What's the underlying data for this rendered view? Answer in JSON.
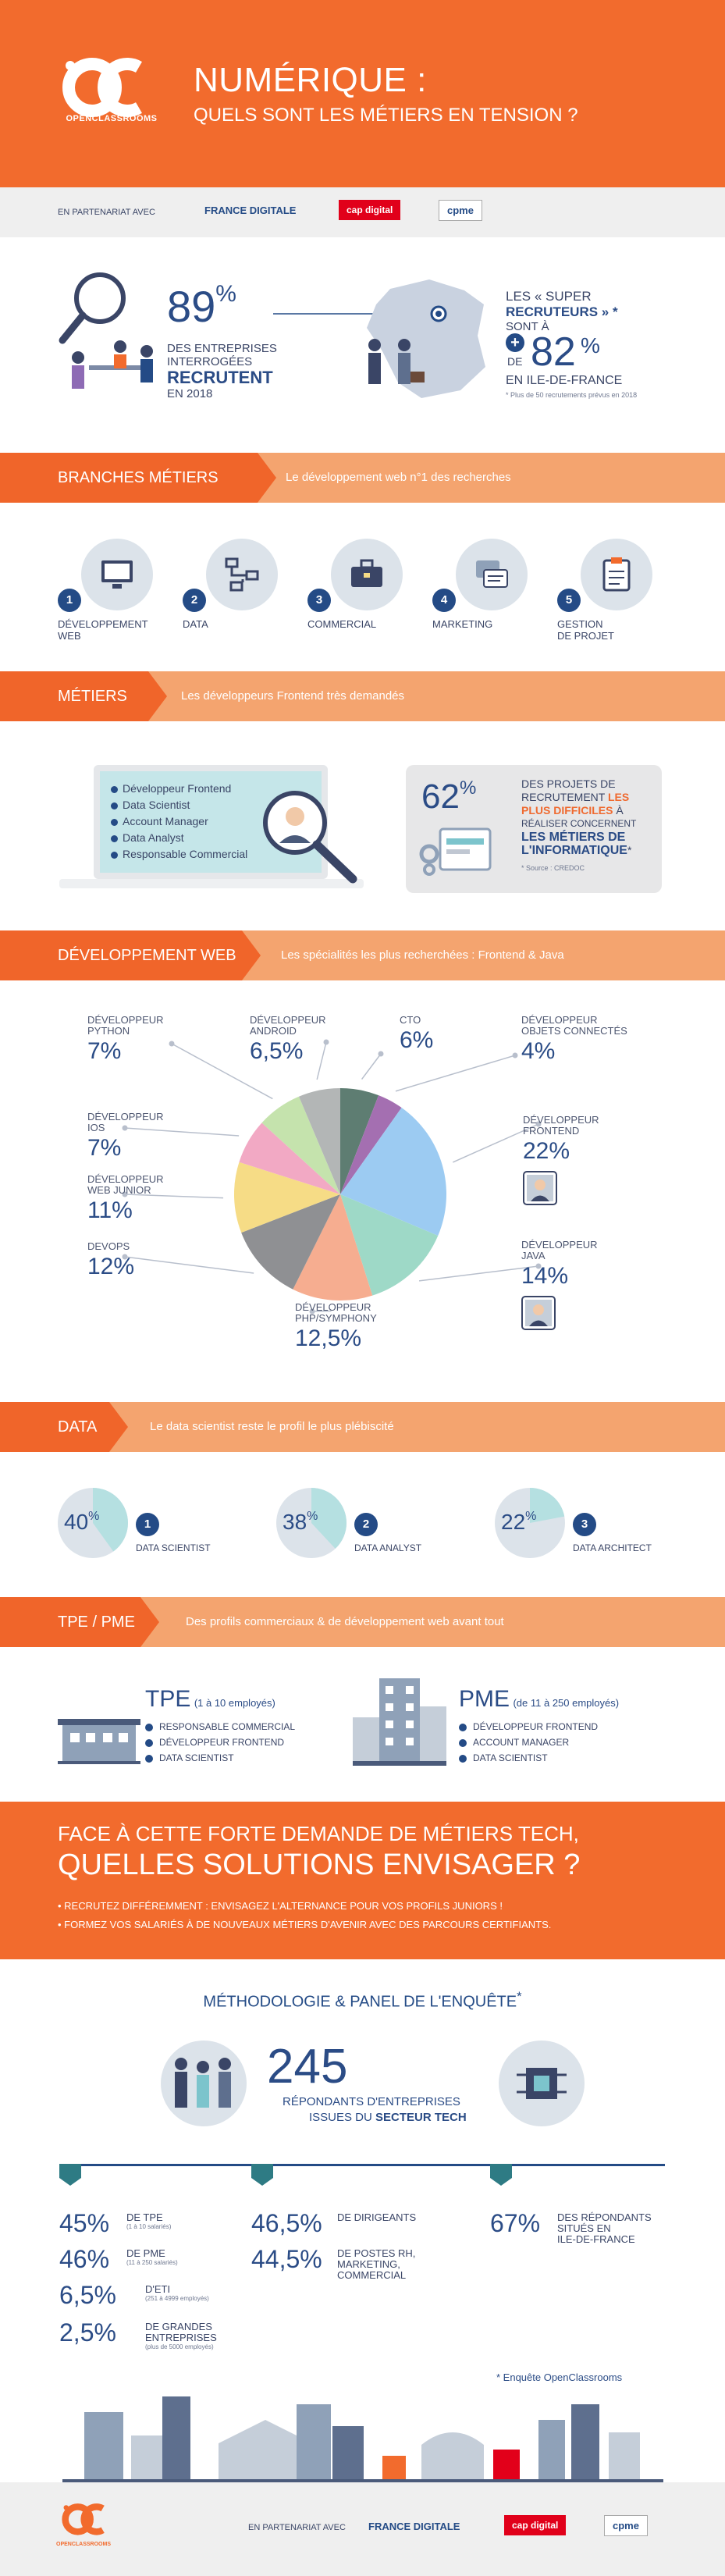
{
  "header": {
    "logo_text": "OPENCLASSROOMS",
    "title": "NUMÉRIQUE :",
    "subtitle": "QUELS SONT LES MÉTIERS EN TENSION ?"
  },
  "partners": {
    "label": "EN PARTENARIAT AVEC",
    "logos": [
      "FRANCE DIGITALE",
      "cap digital",
      "cpme"
    ]
  },
  "intro": {
    "pct": "89",
    "pct_unit": "%",
    "line1": "DES ENTREPRISES",
    "line2": "INTERROGÉES",
    "line3": "RECRUTENT",
    "line4": "EN 2018",
    "right_line1": "LES « SUPER",
    "right_line2": "RECRUTEURS » *",
    "right_line3": "SONT À",
    "plus": "+",
    "de": "DE",
    "right_pct": "82",
    "right_pct_unit": "%",
    "right_line4": "EN ILE-DE-FRANCE",
    "footnote": "* Plus de 50 recrutements prévus en 2018"
  },
  "branches": {
    "tag": "BRANCHES MÉTIERS",
    "desc": "Le développement web n°1 des recherches",
    "items": [
      {
        "num": "1",
        "label1": "DÉVELOPPEMENT",
        "label2": "WEB"
      },
      {
        "num": "2",
        "label1": "DATA",
        "label2": ""
      },
      {
        "num": "3",
        "label1": "COMMERCIAL",
        "label2": ""
      },
      {
        "num": "4",
        "label1": "MARKETING",
        "label2": ""
      },
      {
        "num": "5",
        "label1": "GESTION",
        "label2": "DE PROJET"
      }
    ]
  },
  "metiers": {
    "tag": "MÉTIERS",
    "desc": "Les développeurs Frontend très demandés",
    "list": [
      "Développeur Frontend",
      "Data Scientist",
      "Account Manager",
      "Data Analyst",
      "Responsable Commercial"
    ],
    "pct": "62",
    "pct_unit": "%",
    "r1": "DES PROJETS DE",
    "r2": "RECRUTEMENT",
    "r2b": "LES",
    "r3": "PLUS DIFFICILES",
    "r3b": "À",
    "r4": "RÉALISER CONCERNENT",
    "r5": "LES MÉTIERS DE",
    "r6": "L'INFORMATIQUE",
    "r6b": "*",
    "source": "* Source : CREDOC"
  },
  "devweb": {
    "tag": "DÉVELOPPEMENT WEB",
    "desc": "Les spécialités les plus recherchées : Frontend & Java"
  },
  "chart_data": {
    "type": "pie",
    "series": [
      {
        "label1": "CTO",
        "label2": "",
        "value": "6%",
        "v": 6,
        "color": "#5e7d72"
      },
      {
        "label1": "DÉVELOPPEUR",
        "label2": "OBJETS CONNECTÉS",
        "value": "4%",
        "v": 4,
        "color": "#a46fb1"
      },
      {
        "label1": "DÉVELOPPEUR",
        "label2": "FRONTEND",
        "value": "22%",
        "v": 22,
        "color": "#9ccbf2"
      },
      {
        "label1": "DÉVELOPPEUR",
        "label2": "JAVA",
        "value": "14%",
        "v": 14,
        "color": "#9ed9c7"
      },
      {
        "label1": "DÉVELOPPEUR",
        "label2": "PHP/SYMPHONY",
        "value": "12,5%",
        "v": 12.5,
        "color": "#f6ad90"
      },
      {
        "label1": "DEVOPS",
        "label2": "",
        "value": "12%",
        "v": 12,
        "color": "#8f9093"
      },
      {
        "label1": "DÉVELOPPEUR",
        "label2": "WEB JUNIOR",
        "value": "11%",
        "v": 11,
        "color": "#f6dc86"
      },
      {
        "label1": "DÉVELOPPEUR",
        "label2": "IOS",
        "value": "7%",
        "v": 7,
        "color": "#f2a9c4"
      },
      {
        "label1": "DÉVELOPPEUR",
        "label2": "PYTHON",
        "value": "7%",
        "v": 7,
        "color": "#c5e3ad"
      },
      {
        "label1": "DÉVELOPPEUR",
        "label2": "ANDROID",
        "value": "6,5%",
        "v": 6.5,
        "color": "#b3b6b6"
      }
    ]
  },
  "data_section": {
    "tag": "DATA",
    "desc": "Le data scientist reste le profil le plus plébiscité",
    "items": [
      {
        "pct": "40",
        "unit": "%",
        "frac": 0.4,
        "num": "1",
        "label": "DATA SCIENTIST"
      },
      {
        "pct": "38",
        "unit": "%",
        "frac": 0.38,
        "num": "2",
        "label": "DATA ANALYST"
      },
      {
        "pct": "22",
        "unit": "%",
        "frac": 0.22,
        "num": "3",
        "label": "DATA ARCHITECT"
      }
    ]
  },
  "tpe": {
    "tag": "TPE / PME",
    "desc": "Des profils commerciaux & de développement web avant tout",
    "tpe_title": "TPE",
    "tpe_sub": "(1 à 10 employés)",
    "tpe_list": [
      "RESPONSABLE COMMERCIAL",
      "DÉVELOPPEUR FRONTEND",
      "DATA SCIENTIST"
    ],
    "pme_title": "PME",
    "pme_sub": "(de 11 à 250 employés)",
    "pme_list": [
      "DÉVELOPPEUR FRONTEND",
      "ACCOUNT MANAGER",
      "DATA SCIENTIST"
    ]
  },
  "solutions": {
    "title1": "FACE À CETTE  FORTE DEMANDE DE MÉTIERS TECH,",
    "title2": "QUELLES SOLUTIONS ENVISAGER ?",
    "bullet1": "• RECRUTEZ DIFFÉREMMENT : ENVISAGEZ L'ALTERNANCE POUR VOS PROFILS JUNIORS !",
    "bullet2": "• FORMEZ VOS SALARIÉS À DE NOUVEAUX MÉTIERS D'AVENIR AVEC DES PARCOURS CERTIFIANTS."
  },
  "methodo": {
    "title": "MÉTHODOLOGIE & PANEL DE L'ENQUÊTE",
    "star": "*",
    "count": "245",
    "count_l1": "RÉPONDANTS D'ENTREPRISES",
    "count_l2a": "ISSUES DU",
    "count_l2b": "SECTEUR TECH",
    "col1": [
      {
        "pct": "45%",
        "label": "DE TPE",
        "note": "(1 à 10 salariés)"
      },
      {
        "pct": "46%",
        "label": "DE PME",
        "note": "(11 à 250 salariés)"
      },
      {
        "pct": "6,5%",
        "label": "D'ETI",
        "note": "(251 à 4999 employés)"
      },
      {
        "pct": "2,5%",
        "label": "DE GRANDES",
        "label2": "ENTREPRISES",
        "note": "(plus de 5000 employés)"
      }
    ],
    "col2": [
      {
        "pct": "46,5%",
        "label": "DE DIRIGEANTS"
      },
      {
        "pct": "44,5%",
        "label": "DE POSTES RH,",
        "label2": "MARKETING,",
        "label3": "COMMERCIAL"
      }
    ],
    "col3": [
      {
        "pct": "67%",
        "label": "DES RÉPONDANTS",
        "label2": "SITUÉS EN",
        "label3": "ILE-DE-FRANCE"
      }
    ],
    "source": "* Enquête OpenClassrooms"
  },
  "footer": {
    "logo_text": "OPENCLASSROOMS",
    "label": "EN PARTENARIAT AVEC",
    "logos": [
      "FRANCE DIGITALE",
      "cap digital",
      "cpme"
    ]
  }
}
